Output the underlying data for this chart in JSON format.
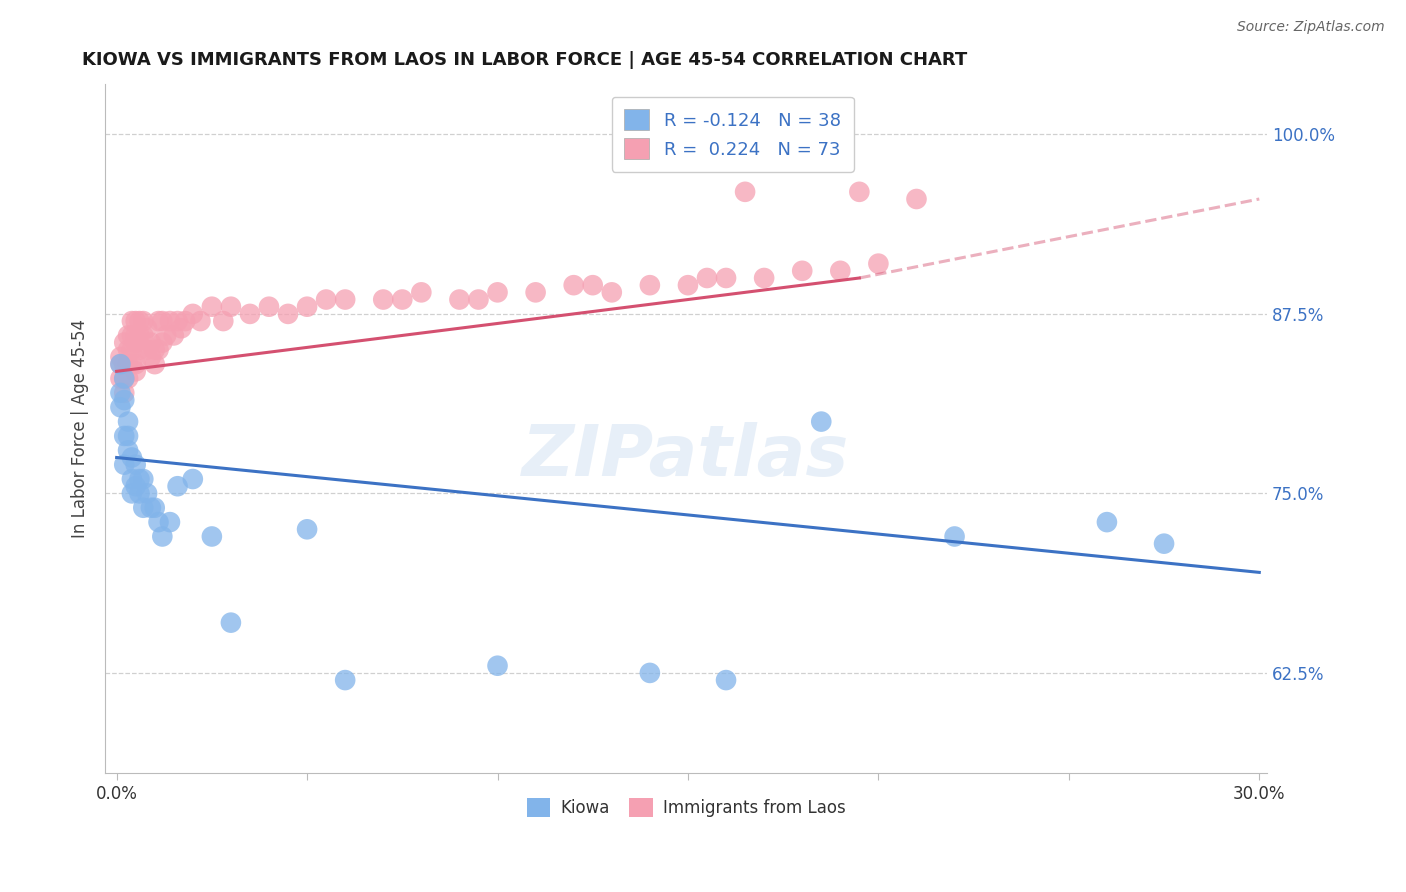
{
  "title": "KIOWA VS IMMIGRANTS FROM LAOS IN LABOR FORCE | AGE 45-54 CORRELATION CHART",
  "source": "Source: ZipAtlas.com",
  "ylabel": "In Labor Force | Age 45-54",
  "xlim": [
    -0.003,
    0.302
  ],
  "ylim": [
    0.555,
    1.035
  ],
  "yticks": [
    0.625,
    0.75,
    0.875,
    1.0
  ],
  "ytick_labels": [
    "62.5%",
    "75.0%",
    "87.5%",
    "100.0%"
  ],
  "xtick_labels": [
    "0.0%",
    "30.0%"
  ],
  "kiowa_color": "#82B4EA",
  "laos_color": "#F5A0B2",
  "kiowa_line_color": "#3C72C4",
  "laos_line_color": "#D45070",
  "kiowa_R": -0.124,
  "kiowa_N": 38,
  "laos_R": 0.224,
  "laos_N": 73,
  "legend_label_kiowa": "Kiowa",
  "legend_label_laos": "Immigrants from Laos",
  "watermark": "ZIPatlas",
  "background_color": "#ffffff",
  "grid_color": "#d0d0d0",
  "kiowa_line_x0": 0.0,
  "kiowa_line_y0": 0.775,
  "kiowa_line_x1": 0.3,
  "kiowa_line_y1": 0.695,
  "laos_line_x0": 0.0,
  "laos_line_y0": 0.835,
  "laos_line_x1_solid": 0.195,
  "laos_line_y1_solid": 0.9,
  "laos_line_x1_dash": 0.3,
  "laos_line_y1_dash": 0.955,
  "kiowa_x": [
    0.001,
    0.001,
    0.001,
    0.002,
    0.002,
    0.002,
    0.002,
    0.003,
    0.003,
    0.003,
    0.004,
    0.004,
    0.004,
    0.005,
    0.005,
    0.006,
    0.006,
    0.007,
    0.007,
    0.008,
    0.009,
    0.01,
    0.011,
    0.012,
    0.014,
    0.016,
    0.02,
    0.025,
    0.03,
    0.05,
    0.06,
    0.1,
    0.14,
    0.16,
    0.185,
    0.22,
    0.26,
    0.275
  ],
  "kiowa_y": [
    0.84,
    0.82,
    0.81,
    0.83,
    0.815,
    0.79,
    0.77,
    0.8,
    0.79,
    0.78,
    0.775,
    0.76,
    0.75,
    0.77,
    0.755,
    0.76,
    0.75,
    0.76,
    0.74,
    0.75,
    0.74,
    0.74,
    0.73,
    0.72,
    0.73,
    0.755,
    0.76,
    0.72,
    0.66,
    0.725,
    0.62,
    0.63,
    0.625,
    0.62,
    0.8,
    0.72,
    0.73,
    0.715
  ],
  "laos_x": [
    0.001,
    0.001,
    0.001,
    0.002,
    0.002,
    0.002,
    0.002,
    0.003,
    0.003,
    0.003,
    0.003,
    0.004,
    0.004,
    0.004,
    0.004,
    0.005,
    0.005,
    0.005,
    0.005,
    0.005,
    0.006,
    0.006,
    0.006,
    0.007,
    0.007,
    0.008,
    0.008,
    0.009,
    0.009,
    0.01,
    0.01,
    0.011,
    0.011,
    0.012,
    0.012,
    0.013,
    0.014,
    0.015,
    0.016,
    0.017,
    0.018,
    0.02,
    0.022,
    0.025,
    0.028,
    0.03,
    0.035,
    0.04,
    0.045,
    0.05,
    0.06,
    0.07,
    0.08,
    0.09,
    0.1,
    0.11,
    0.12,
    0.13,
    0.14,
    0.15,
    0.16,
    0.17,
    0.18,
    0.19,
    0.2,
    0.075,
    0.055,
    0.095,
    0.125,
    0.155,
    0.165,
    0.195,
    0.21
  ],
  "laos_y": [
    0.845,
    0.84,
    0.83,
    0.855,
    0.84,
    0.83,
    0.82,
    0.86,
    0.85,
    0.84,
    0.83,
    0.87,
    0.86,
    0.85,
    0.84,
    0.87,
    0.86,
    0.855,
    0.84,
    0.835,
    0.87,
    0.86,
    0.85,
    0.87,
    0.86,
    0.865,
    0.85,
    0.855,
    0.845,
    0.85,
    0.84,
    0.87,
    0.85,
    0.87,
    0.855,
    0.86,
    0.87,
    0.86,
    0.87,
    0.865,
    0.87,
    0.875,
    0.87,
    0.88,
    0.87,
    0.88,
    0.875,
    0.88,
    0.875,
    0.88,
    0.885,
    0.885,
    0.89,
    0.885,
    0.89,
    0.89,
    0.895,
    0.89,
    0.895,
    0.895,
    0.9,
    0.9,
    0.905,
    0.905,
    0.91,
    0.885,
    0.885,
    0.885,
    0.895,
    0.9,
    0.96,
    0.96,
    0.955
  ]
}
